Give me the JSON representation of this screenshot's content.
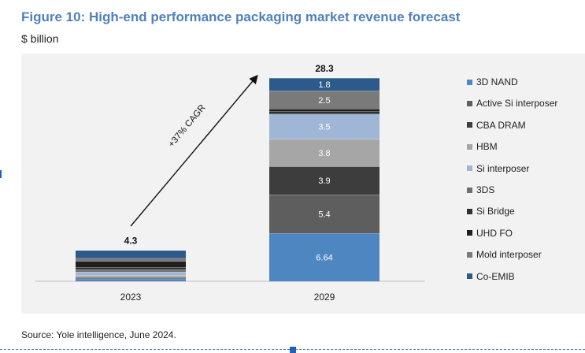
{
  "figure": {
    "title": "Figure 10: High-end performance packaging market revenue forecast",
    "unit_label": "$ billion",
    "source": "Source: Yole intelligence, June 2024."
  },
  "chart_data": {
    "type": "bar",
    "stacked": true,
    "categories": [
      "2023",
      "2029"
    ],
    "totals": [
      "4.3",
      "28.3"
    ],
    "ylim": [
      0,
      29
    ],
    "series": [
      {
        "name": "3D NAND",
        "values": [
          0.35,
          6.64
        ],
        "color": "#4e86c2",
        "labels": [
          "",
          "6.64"
        ]
      },
      {
        "name": "Active Si interposer",
        "values": [
          0.13,
          5.4
        ],
        "color": "#5e5e5e",
        "labels": [
          "",
          "5.4"
        ]
      },
      {
        "name": "CBA DRAM",
        "values": [
          0.1,
          3.9
        ],
        "color": "#3d3d3d",
        "labels": [
          "",
          "3.9"
        ]
      },
      {
        "name": "HBM",
        "values": [
          0.22,
          3.8
        ],
        "color": "#a6a6a6",
        "labels": [
          "",
          "3.8"
        ]
      },
      {
        "name": "Si interposer",
        "values": [
          0.5,
          3.5
        ],
        "color": "#9fb6d6",
        "labels": [
          "",
          "3.5"
        ]
      },
      {
        "name": "3DS",
        "values": [
          0.35,
          0.0
        ],
        "color": "#6f6f6f",
        "labels": [
          "",
          ""
        ]
      },
      {
        "name": "Si Bridge",
        "values": [
          0.3,
          0.35
        ],
        "color": "#2f2f2f",
        "labels": [
          "",
          ""
        ]
      },
      {
        "name": "UHD FO",
        "values": [
          0.85,
          0.35
        ],
        "color": "#1f1f1f",
        "labels": [
          "",
          ""
        ]
      },
      {
        "name": "Mold interposer",
        "values": [
          0.4,
          2.5
        ],
        "color": "#7a7a7a",
        "labels": [
          "",
          "2.5"
        ]
      },
      {
        "name": "Co-EMIB",
        "values": [
          1.1,
          1.8
        ],
        "color": "#2c5a8a",
        "labels": [
          "",
          "1.8"
        ]
      }
    ],
    "annotation": "+37% CAGR",
    "legend": "right"
  }
}
